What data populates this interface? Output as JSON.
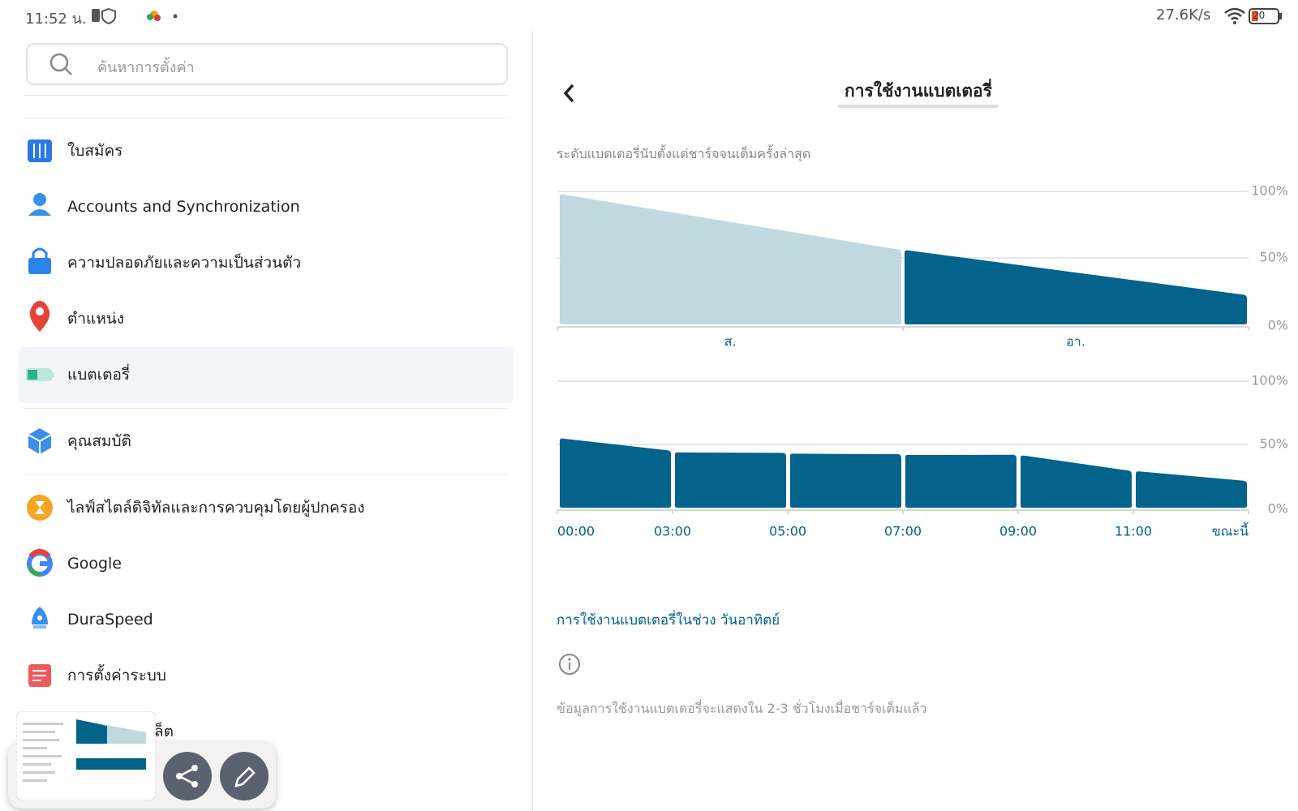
{
  "status_bar": {
    "time": "11:52 น.",
    "speed": "27.6K/s",
    "battery": "20"
  },
  "search": {
    "placeholder": "ค้นหาการตั้งค่า"
  },
  "menu": [
    {
      "label": "ใบสมัคร"
    },
    {
      "label": "Accounts and Synchronization"
    },
    {
      "label": "ความปลอดภัยและความเป็นส่วนตัว"
    },
    {
      "label": "ตำแหน่ง"
    },
    {
      "label": "แบตเตอรี่"
    },
    {
      "label": "คุณสมบัติ"
    },
    {
      "label": "ไลฟ์สไตล์ดิจิทัลและการควบคุมโดยผู้ปกครอง"
    },
    {
      "label": "Google"
    },
    {
      "label": "DuraSpeed"
    },
    {
      "label": "การตั้งค่าระบบ"
    },
    {
      "label": "ล็ต"
    }
  ],
  "detail": {
    "title": "การใช้งานแบตเตอรี่",
    "subtitle": "ระดับแบตเตอรี่นับตั้งแต่ชาร์จจนเต็มครั้งล่าสุด",
    "usage_link": "การใช้งานแบตเตอรี่ในช่วง วันอาทิตย์",
    "info": "ข้อมูลการใช้งานแบตเตอรี่จะแสดงใน 2-3 ชั่วโมงเมื่อชาร์จเต็มแล้ว"
  },
  "battery_chart": {
    "type": "area",
    "ylim": [
      0,
      100
    ],
    "yticks": [
      {
        "value": 100,
        "label": "100%"
      },
      {
        "value": 50,
        "label": "50%"
      },
      {
        "value": 0,
        "label": "0%"
      }
    ],
    "segments": [
      {
        "label": "ส.",
        "start": 98,
        "end": 56,
        "color": "#c0d8e0"
      },
      {
        "label": "อา.",
        "start": 56,
        "end": 22,
        "color": "#03638a"
      }
    ]
  },
  "hourly_chart": {
    "type": "bar",
    "ylim": [
      0,
      100
    ],
    "yticks": [
      {
        "value": 100,
        "label": "100%"
      },
      {
        "value": 50,
        "label": "50%"
      },
      {
        "value": 0,
        "label": "0%"
      }
    ],
    "x_labels": [
      "00:00",
      "03:00",
      "05:00",
      "07:00",
      "09:00",
      "11:00",
      "ขณะนี้"
    ],
    "color": "#03638a",
    "bars": [
      {
        "start": 55,
        "end": 45
      },
      {
        "start": 44,
        "end": 43
      },
      {
        "start": 43,
        "end": 42
      },
      {
        "start": 42,
        "end": 41.5
      },
      {
        "start": 41.5,
        "end": 29
      },
      {
        "start": 29,
        "end": 21
      }
    ]
  }
}
